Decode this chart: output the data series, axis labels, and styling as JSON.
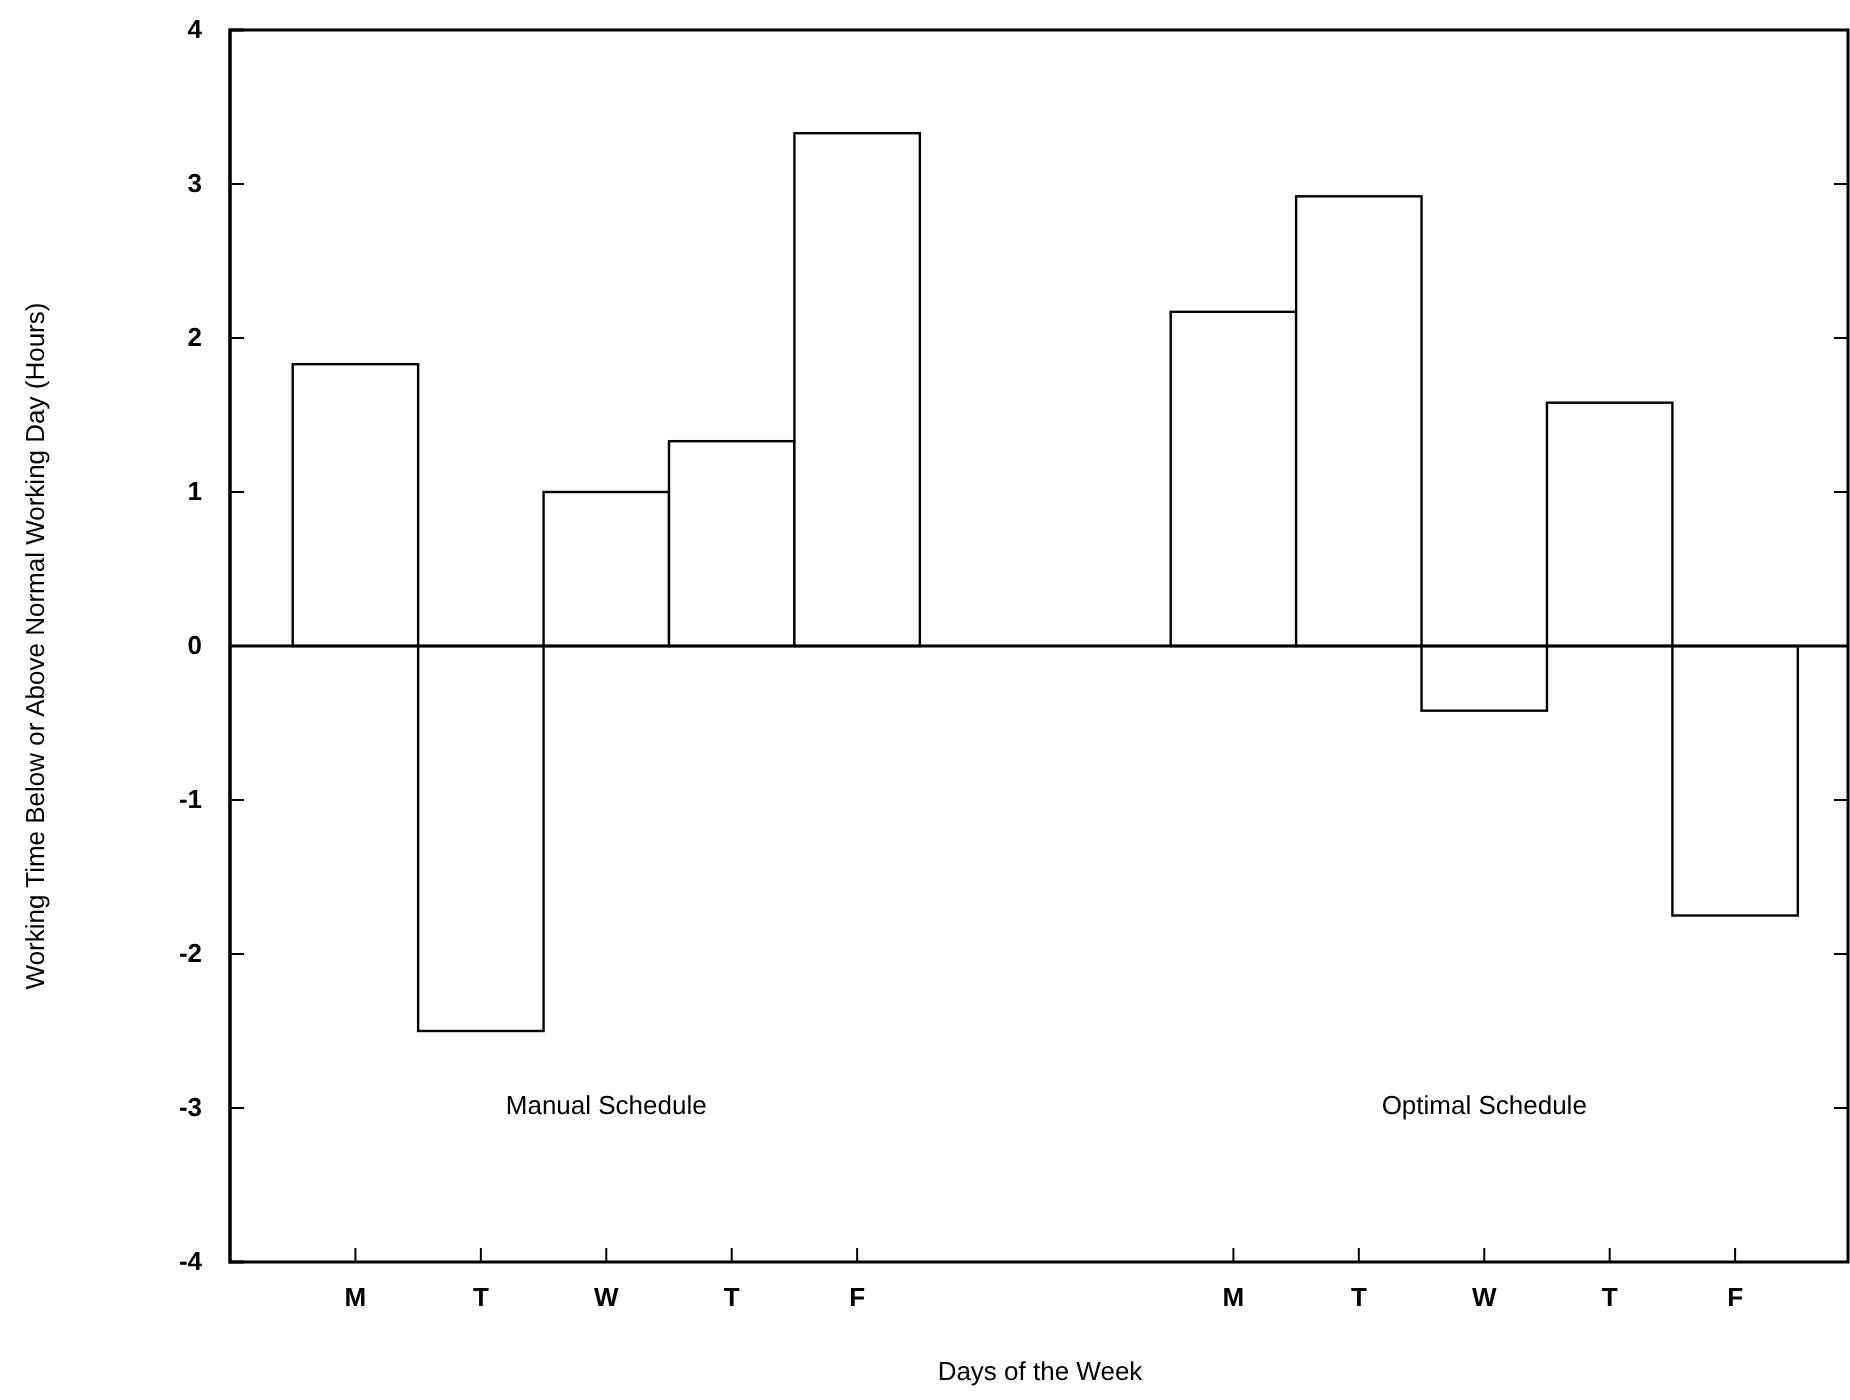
{
  "chart_data": {
    "type": "bar",
    "xlabel": "Days of the Week",
    "ylabel": "Working Time Below or Above Normal Working Day (Hours)",
    "categories": [
      "M",
      "T",
      "W",
      "T",
      "F",
      null,
      null,
      "M",
      "T",
      "W",
      "T",
      "F"
    ],
    "values": [
      1.83,
      -2.5,
      1.0,
      1.33,
      3.33,
      null,
      null,
      2.17,
      2.92,
      -0.42,
      1.58,
      -1.75
    ],
    "color": "#ffffff",
    "ylim": [
      -4,
      4
    ],
    "yticks": [
      -4,
      -3,
      -2,
      -1,
      0,
      1,
      2,
      3,
      4
    ],
    "grid": false,
    "ref_lines": [
      {
        "axis": "y",
        "value": 0,
        "color": "#000000"
      }
    ],
    "annotations": [
      "Manual Schedule",
      "Optimal Schedule"
    ]
  }
}
